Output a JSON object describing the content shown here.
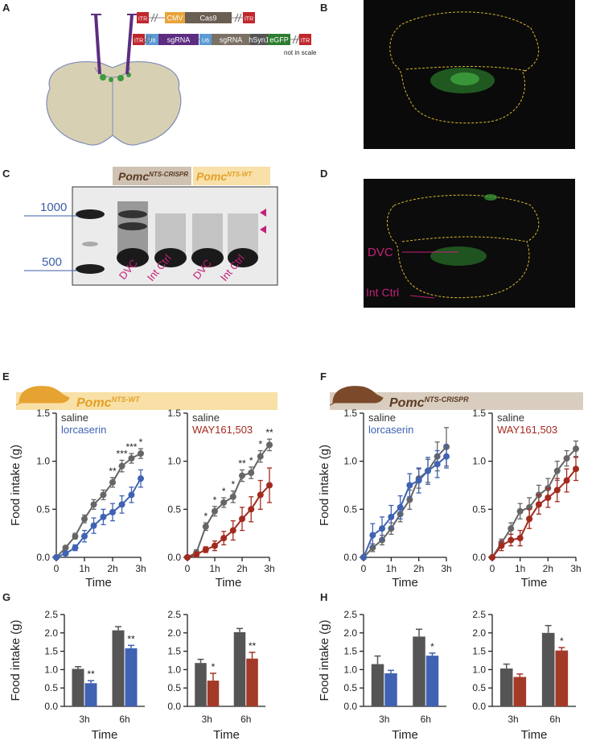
{
  "panel_labels": [
    "A",
    "B",
    "C",
    "D",
    "E",
    "F",
    "G",
    "H"
  ],
  "panel_a": {
    "constructs": [
      [
        "ITR",
        "CMV",
        "Cas9",
        "ITR"
      ],
      [
        "ITR",
        "U6",
        "sgRNA",
        "U6",
        "sgRNA",
        "hSyn1",
        "eGFP",
        "ITR"
      ]
    ],
    "note": "not in scale"
  },
  "panel_c": {
    "groups": [
      {
        "name": "Pomc",
        "superscript": "NTS-CRISPR"
      },
      {
        "name": "Pomc",
        "superscript": "NTS-WT"
      }
    ],
    "ladder": [
      1000,
      500
    ],
    "lanes": [
      "DVC",
      "Int Ctrl",
      "DVC",
      "Int Ctrl"
    ]
  },
  "panel_d": {
    "labels": [
      "DVC",
      "Int Ctrl"
    ]
  },
  "headers": [
    {
      "name": "Pomc",
      "superscript": "NTS-WT"
    },
    {
      "name": "Pomc",
      "superscript": "NTS-CRISPR"
    }
  ],
  "chart_data": [
    {
      "type": "line",
      "y_label": "Food intake (g)",
      "x_label": "Time",
      "x": [
        0,
        0.33,
        0.67,
        1,
        1.33,
        1.67,
        2,
        2.33,
        2.67,
        3
      ],
      "xlim": [
        0,
        3
      ],
      "xticks": [
        0,
        {
          "value": 1,
          "label": "1h"
        },
        {
          "value": 2,
          "label": "2h"
        },
        {
          "value": 3,
          "label": "3h"
        }
      ],
      "ylim": [
        0,
        1.5
      ],
      "yticks": [
        {
          "value": 0,
          "label": "0.0"
        },
        {
          "value": 0.5,
          "label": "0.5"
        },
        {
          "value": 1,
          "label": "1.0"
        },
        {
          "value": 1.5,
          "label": "1.5"
        }
      ],
      "series": [
        {
          "name": "saline",
          "color": "#666666",
          "values": [
            0,
            0.1,
            0.22,
            0.4,
            0.55,
            0.65,
            0.78,
            0.95,
            1.03,
            1.08
          ],
          "errors": [
            0,
            0.02,
            0.03,
            0.04,
            0.05,
            0.05,
            0.05,
            0.06,
            0.05,
            0.05
          ]
        },
        {
          "name": "lorcaserin",
          "color": "#3f62b3",
          "values": [
            0,
            0.04,
            0.1,
            0.22,
            0.33,
            0.42,
            0.47,
            0.55,
            0.65,
            0.82
          ],
          "errors": [
            0,
            0.02,
            0.03,
            0.06,
            0.08,
            0.08,
            0.09,
            0.09,
            0.08,
            0.09
          ]
        }
      ],
      "significance": [
        null,
        null,
        null,
        null,
        null,
        null,
        "**",
        "***",
        "***",
        "*"
      ]
    },
    {
      "type": "line",
      "x_label": "Time",
      "x": [
        0,
        0.33,
        0.67,
        1,
        1.33,
        1.67,
        2,
        2.33,
        2.67,
        3
      ],
      "xlim": [
        0,
        3
      ],
      "xticks": [
        0,
        {
          "value": 1,
          "label": "1h"
        },
        {
          "value": 2,
          "label": "2h"
        },
        {
          "value": 3,
          "label": "3h"
        }
      ],
      "ylim": [
        0,
        1.5
      ],
      "yticks": [
        {
          "value": 0,
          "label": "0.0"
        },
        {
          "value": 0.5,
          "label": "0.5"
        },
        {
          "value": 1,
          "label": "1.0"
        },
        {
          "value": 1.5,
          "label": "1.5"
        }
      ],
      "series": [
        {
          "name": "saline",
          "color": "#666666",
          "values": [
            0,
            0.05,
            0.32,
            0.48,
            0.57,
            0.63,
            0.85,
            0.88,
            1.05,
            1.17
          ],
          "errors": [
            0,
            0.03,
            0.04,
            0.05,
            0.05,
            0.06,
            0.06,
            0.06,
            0.06,
            0.06
          ]
        },
        {
          "name": "WAY161,503",
          "color": "#a32a1f",
          "values": [
            0,
            0.03,
            0.08,
            0.12,
            0.2,
            0.28,
            0.4,
            0.5,
            0.65,
            0.75
          ],
          "errors": [
            0,
            0.02,
            0.03,
            0.05,
            0.07,
            0.1,
            0.12,
            0.13,
            0.15,
            0.18
          ]
        }
      ],
      "significance": [
        null,
        null,
        "*",
        "*",
        "*",
        "*",
        "**",
        "*",
        "*",
        "**"
      ]
    },
    {
      "type": "line",
      "y_label": "Food intake (g)",
      "x_label": "Time",
      "x": [
        0,
        0.33,
        0.67,
        1,
        1.33,
        1.67,
        2,
        2.33,
        2.67,
        3
      ],
      "xlim": [
        0,
        3
      ],
      "xticks": [
        0,
        {
          "value": 1,
          "label": "1h"
        },
        {
          "value": 2,
          "label": "2h"
        },
        {
          "value": 3,
          "label": "3h"
        }
      ],
      "ylim": [
        0,
        1.5
      ],
      "yticks": [
        {
          "value": 0,
          "label": "0.0"
        },
        {
          "value": 0.5,
          "label": "0.5"
        },
        {
          "value": 1,
          "label": "1.0"
        },
        {
          "value": 1.5,
          "label": "1.5"
        }
      ],
      "series": [
        {
          "name": "saline",
          "color": "#666666",
          "values": [
            0,
            0.1,
            0.18,
            0.3,
            0.45,
            0.6,
            0.82,
            0.9,
            1.05,
            1.15
          ],
          "errors": [
            0,
            0.04,
            0.05,
            0.06,
            0.08,
            0.1,
            0.1,
            0.12,
            0.15,
            0.2
          ]
        },
        {
          "name": "lorcaserin",
          "color": "#3f62b3",
          "values": [
            0,
            0.23,
            0.3,
            0.42,
            0.52,
            0.75,
            0.8,
            0.9,
            0.97,
            1.05
          ],
          "errors": [
            0,
            0.12,
            0.12,
            0.12,
            0.12,
            0.12,
            0.13,
            0.14,
            0.14,
            0.12
          ]
        }
      ]
    },
    {
      "type": "line",
      "x_label": "Time",
      "x": [
        0,
        0.33,
        0.67,
        1,
        1.33,
        1.67,
        2,
        2.33,
        2.67,
        3
      ],
      "xlim": [
        0,
        3
      ],
      "xticks": [
        0,
        {
          "value": 1,
          "label": "1h"
        },
        {
          "value": 2,
          "label": "2h"
        },
        {
          "value": 3,
          "label": "3h"
        }
      ],
      "ylim": [
        0,
        1.5
      ],
      "yticks": [
        {
          "value": 0,
          "label": "0.0"
        },
        {
          "value": 0.5,
          "label": "0.5"
        },
        {
          "value": 1,
          "label": "1.0"
        },
        {
          "value": 1.5,
          "label": "1.5"
        }
      ],
      "series": [
        {
          "name": "saline",
          "color": "#666666",
          "values": [
            0,
            0.15,
            0.3,
            0.48,
            0.52,
            0.65,
            0.72,
            0.9,
            1.03,
            1.13
          ],
          "errors": [
            0,
            0.04,
            0.06,
            0.08,
            0.1,
            0.1,
            0.1,
            0.1,
            0.08,
            0.08
          ]
        },
        {
          "name": "WAY161,503",
          "color": "#a32a1f",
          "values": [
            0,
            0.12,
            0.18,
            0.2,
            0.4,
            0.55,
            0.62,
            0.7,
            0.8,
            0.92
          ],
          "errors": [
            0,
            0.05,
            0.06,
            0.08,
            0.1,
            0.1,
            0.1,
            0.12,
            0.12,
            0.12
          ]
        }
      ]
    },
    {
      "type": "bar",
      "y_label": "Food intake (g)",
      "x_label": "Time",
      "categories": [
        "3h",
        "6h"
      ],
      "ylim": [
        0,
        2.5
      ],
      "yticks": [
        {
          "value": 0,
          "label": "0.0"
        },
        {
          "value": 0.5,
          "label": "0.5"
        },
        {
          "value": 1,
          "label": "1.0"
        },
        {
          "value": 1.5,
          "label": "1.5"
        },
        {
          "value": 2,
          "label": "2.0"
        },
        {
          "value": 2.5,
          "label": "2.5"
        }
      ],
      "series": [
        {
          "color": "#555555",
          "values": [
            1.02,
            2.07
          ],
          "errors": [
            0.06,
            0.1
          ]
        },
        {
          "color": "#3f62b3",
          "values": [
            0.63,
            1.58
          ],
          "errors": [
            0.07,
            0.08
          ],
          "significance": [
            "**",
            "**"
          ]
        }
      ]
    },
    {
      "type": "bar",
      "x_label": "Time",
      "categories": [
        "3h",
        "6h"
      ],
      "ylim": [
        0,
        2.5
      ],
      "yticks": [
        {
          "value": 0,
          "label": "0.0"
        },
        {
          "value": 0.5,
          "label": "0.5"
        },
        {
          "value": 1,
          "label": "1.0"
        },
        {
          "value": 1.5,
          "label": "1.5"
        },
        {
          "value": 2,
          "label": "2.0"
        },
        {
          "value": 2.5,
          "label": "2.5"
        }
      ],
      "series": [
        {
          "color": "#555555",
          "values": [
            1.18,
            2.02
          ],
          "errors": [
            0.1,
            0.1
          ]
        },
        {
          "color": "#a33a28",
          "values": [
            0.7,
            1.3
          ],
          "errors": [
            0.2,
            0.17
          ],
          "significance": [
            "*",
            "**"
          ]
        }
      ]
    },
    {
      "type": "bar",
      "y_label": "Food intake (g)",
      "x_label": "Time",
      "categories": [
        "3h",
        "6h"
      ],
      "ylim": [
        0,
        2.5
      ],
      "yticks": [
        {
          "value": 0,
          "label": "0.0"
        },
        {
          "value": 0.5,
          "label": "0.5"
        },
        {
          "value": 1,
          "label": "1.0"
        },
        {
          "value": 1.5,
          "label": "1.5"
        },
        {
          "value": 2,
          "label": "2.0"
        },
        {
          "value": 2.5,
          "label": "2.5"
        }
      ],
      "series": [
        {
          "color": "#555555",
          "values": [
            1.15,
            1.9
          ],
          "errors": [
            0.22,
            0.2
          ]
        },
        {
          "color": "#3f62b3",
          "values": [
            0.9,
            1.38
          ],
          "errors": [
            0.08,
            0.07
          ],
          "significance": [
            null,
            "*"
          ]
        }
      ]
    },
    {
      "type": "bar",
      "x_label": "Time",
      "categories": [
        "3h",
        "6h"
      ],
      "ylim": [
        0,
        2.5
      ],
      "yticks": [
        {
          "value": 0,
          "label": "0.0"
        },
        {
          "value": 0.5,
          "label": "0.5"
        },
        {
          "value": 1,
          "label": "1.0"
        },
        {
          "value": 1.5,
          "label": "1.5"
        },
        {
          "value": 2,
          "label": "2.0"
        },
        {
          "value": 2.5,
          "label": "2.5"
        }
      ],
      "series": [
        {
          "color": "#555555",
          "values": [
            1.03,
            2.0
          ],
          "errors": [
            0.12,
            0.2
          ]
        },
        {
          "color": "#a33a28",
          "values": [
            0.8,
            1.52
          ],
          "errors": [
            0.08,
            0.08
          ],
          "significance": [
            null,
            "*"
          ]
        }
      ]
    }
  ]
}
